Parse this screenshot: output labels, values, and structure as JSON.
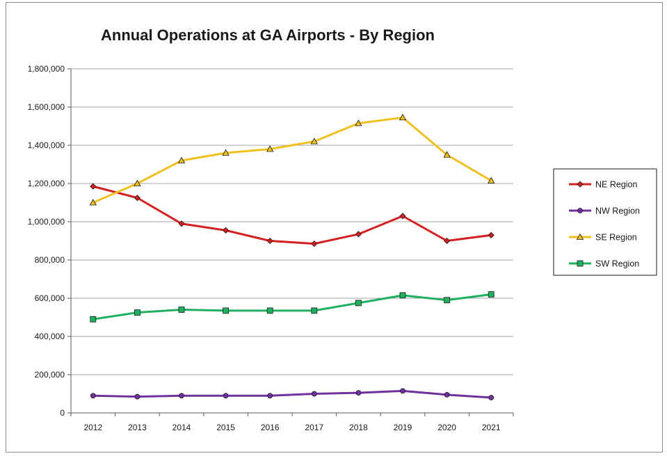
{
  "chart_data": {
    "type": "line",
    "title": "Annual Operations at GA Airports - By Region",
    "xlabel": "",
    "ylabel": "",
    "x": [
      "2012",
      "2013",
      "2014",
      "2015",
      "2016",
      "2017",
      "2018",
      "2019",
      "2020",
      "2021"
    ],
    "ylim": [
      0,
      1800000
    ],
    "yticks": [
      0,
      200000,
      400000,
      600000,
      800000,
      1000000,
      1200000,
      1400000,
      1600000,
      1800000
    ],
    "ytick_labels": [
      "0",
      "200,000",
      "400,000",
      "600,000",
      "800,000",
      "1,000,000",
      "1,200,000",
      "1,400,000",
      "1,600,000",
      "1,800,000"
    ],
    "grid": "horizontal",
    "legend_position": "right",
    "series": [
      {
        "name": "NE Region",
        "color": "#d42020",
        "marker": "diamond",
        "values": [
          1185000,
          1125000,
          990000,
          955000,
          900000,
          885000,
          935000,
          1030000,
          900000,
          930000
        ]
      },
      {
        "name": "NW Region",
        "color": "#7030a0",
        "marker": "circle",
        "values": [
          90000,
          85000,
          90000,
          90000,
          90000,
          100000,
          105000,
          115000,
          95000,
          80000
        ]
      },
      {
        "name": "SE Region",
        "color": "#f0c020",
        "marker": "triangle",
        "values": [
          1100000,
          1200000,
          1320000,
          1360000,
          1380000,
          1420000,
          1515000,
          1545000,
          1350000,
          1215000
        ]
      },
      {
        "name": "SW Region",
        "color": "#1fb060",
        "marker": "square",
        "values": [
          490000,
          525000,
          540000,
          535000,
          535000,
          535000,
          575000,
          615000,
          590000,
          620000
        ]
      }
    ]
  }
}
